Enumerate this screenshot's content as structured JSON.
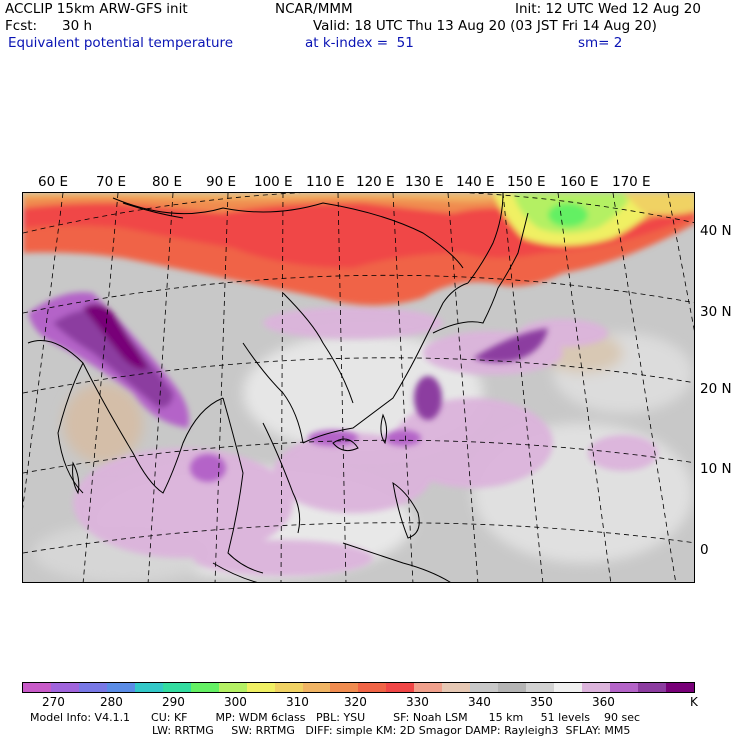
{
  "header": {
    "model": "ACCLIP 15km ARW-GFS init",
    "center": "NCAR/MMM",
    "init": "Init: 12 UTC Wed 12 Aug 20",
    "fcst_label": "Fcst:",
    "fcst_value": "30 h",
    "valid": "Valid: 18 UTC Thu 13 Aug 20 (03 JST Fri 14 Aug 20)",
    "field": "Equivalent potential temperature",
    "level": "at k-index =  51",
    "smooth": "sm= 2"
  },
  "map": {
    "longitude_labels": [
      "60 E",
      "70 E",
      "80 E",
      "90 E",
      "100 E",
      "110 E",
      "120 E",
      "130 E",
      "140 E",
      "150 E",
      "160 E",
      "170 E"
    ],
    "latitude_labels": [
      "40 N",
      "30 N",
      "20 N",
      "10 N",
      "0"
    ]
  },
  "colorbar": {
    "colors": [
      "#c85ac8",
      "#a064dc",
      "#7878e6",
      "#5a8ce6",
      "#32c8c8",
      "#32dca0",
      "#64f064",
      "#b4f064",
      "#f0f064",
      "#f0d264",
      "#f0b464",
      "#f08c50",
      "#f06446",
      "#f04646",
      "#f0a08c",
      "#e6c8b4",
      "#c8c8c8",
      "#b4b4b4",
      "#d2d2d2",
      "#f0f0f0",
      "#dcb4dc",
      "#b464c8",
      "#8c3ca0",
      "#780078"
    ],
    "labels": [
      "270",
      "280",
      "290",
      "300",
      "310",
      "320",
      "330",
      "340",
      "350",
      "360"
    ],
    "unit": "K"
  },
  "footer": {
    "line1": "Model Info: V4.1.1      CU: KF        MP: WDM 6class   PBL: YSU        SF: Noah LSM      15 km     51 levels    90 sec",
    "line2": "LW: RRTMG     SW: RRTMG   DIFF: simple KM: 2D Smagor DAMP: Rayleigh3  SFLAY: MM5"
  }
}
